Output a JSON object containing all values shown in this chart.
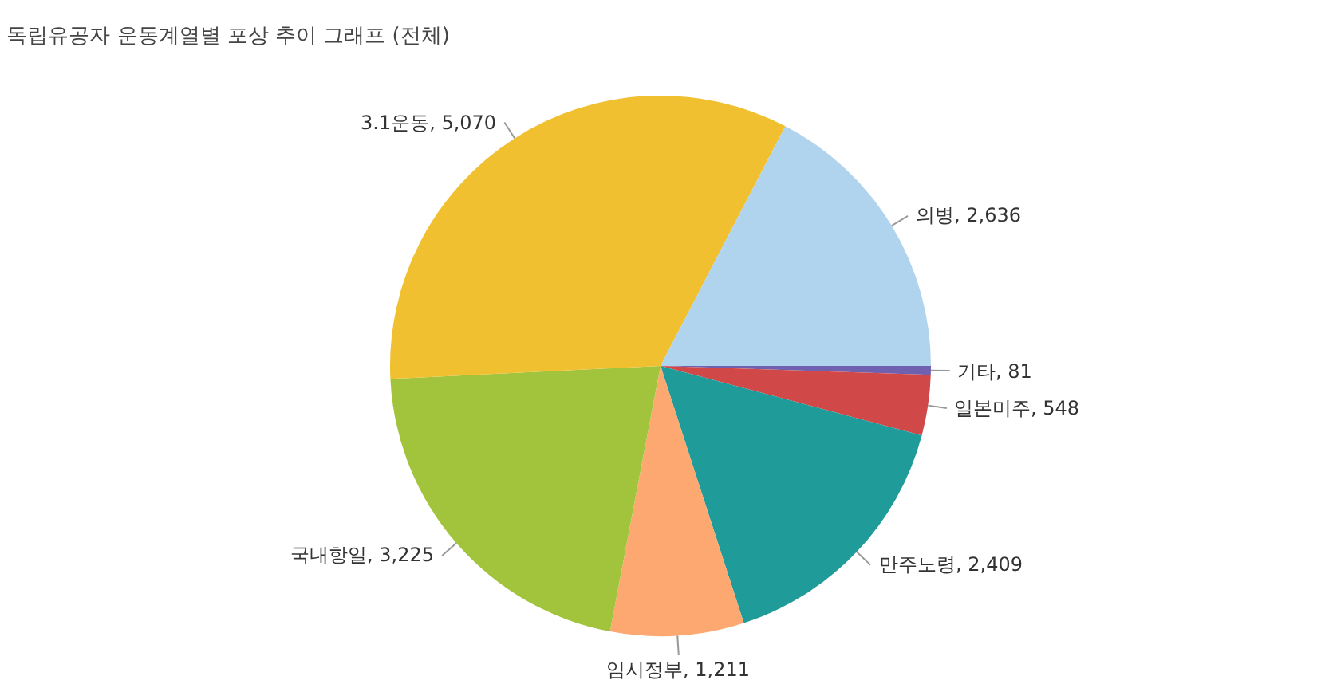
{
  "chart_data": {
    "type": "pie",
    "title": "독립유공자 운동계열별 포상 추이 그래프 (전체)",
    "categories": [
      "기타",
      "일본미주",
      "만주노령",
      "임시정부",
      "국내항일",
      "3.1운동",
      "의병"
    ],
    "values": [
      81,
      548,
      2409,
      1211,
      3225,
      5070,
      2636
    ],
    "value_labels": [
      "81",
      "548",
      "2,409",
      "1,211",
      "3,225",
      "5,070",
      "2,636"
    ],
    "colors": [
      "#7060b0",
      "#d04848",
      "#1f9c9a",
      "#fca870",
      "#a2c43c",
      "#f0c030",
      "#b0d4ee"
    ],
    "legend": false
  }
}
